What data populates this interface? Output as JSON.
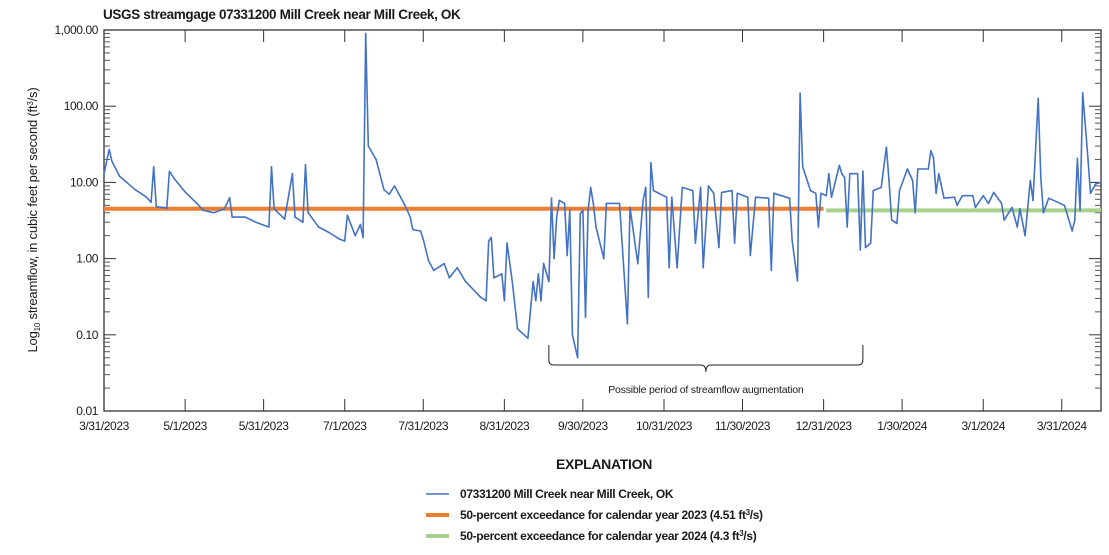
{
  "chart_data": {
    "type": "line",
    "title": "USGS streamgage 07331200 Mill Creek near Mill Creek, OK",
    "ylabel_parts": [
      "Log",
      "10",
      " streamflow, in cubic feet per second (ft",
      "3",
      "/s)"
    ],
    "xlabel": "",
    "y_scale": "log",
    "ylim": [
      0.01,
      1000
    ],
    "xlim": [
      "3/31/2023",
      "4/15/2024"
    ],
    "grid": false,
    "y_ticks": [
      {
        "value": 1000,
        "label": "1,000.00"
      },
      {
        "value": 100,
        "label": "100.00"
      },
      {
        "value": 10,
        "label": "10.00"
      },
      {
        "value": 1,
        "label": "1.00"
      },
      {
        "value": 0.1,
        "label": "0.10"
      },
      {
        "value": 0.01,
        "label": "0.01"
      }
    ],
    "x_ticks": [
      "3/31/2023",
      "5/1/2023",
      "5/31/2023",
      "7/1/2023",
      "7/31/2023",
      "8/31/2023",
      "9/30/2023",
      "10/31/2023",
      "11/30/2023",
      "12/31/2023",
      "1/30/2024",
      "3/1/2024",
      "3/31/2024"
    ],
    "series": [
      {
        "name": "07331200 Mill Creek near Mill Creek, OK",
        "color": "#4472C4",
        "points": [
          [
            "3/31/2023",
            13
          ],
          [
            "4/2/2023",
            27
          ],
          [
            "4/3/2023",
            19
          ],
          [
            "4/6/2023",
            12
          ],
          [
            "4/12/2023",
            8
          ],
          [
            "4/16/2023",
            6.5
          ],
          [
            "4/18/2023",
            5.5
          ],
          [
            "4/19/2023",
            16
          ],
          [
            "4/20/2023",
            4.8
          ],
          [
            "4/24/2023",
            4.6
          ],
          [
            "4/25/2023",
            14
          ],
          [
            "4/27/2023",
            11
          ],
          [
            "5/1/2023",
            7.5
          ],
          [
            "5/5/2023",
            5.5
          ],
          [
            "5/8/2023",
            4.3
          ],
          [
            "5/12/2023",
            4
          ],
          [
            "5/16/2023",
            4.5
          ],
          [
            "5/18/2023",
            6.3
          ],
          [
            "5/19/2023",
            3.5
          ],
          [
            "5/24/2023",
            3.5
          ],
          [
            "5/28/2023",
            3.0
          ],
          [
            "6/2/2023",
            2.6
          ],
          [
            "6/3/2023",
            16
          ],
          [
            "6/4/2023",
            4.5
          ],
          [
            "6/8/2023",
            3.3
          ],
          [
            "6/11/2023",
            13
          ],
          [
            "6/12/2023",
            3.5
          ],
          [
            "6/15/2023",
            3
          ],
          [
            "6/16/2023",
            17
          ],
          [
            "6/17/2023",
            4
          ],
          [
            "6/21/2023",
            2.6
          ],
          [
            "6/25/2023",
            2.2
          ],
          [
            "6/29/2023",
            1.8
          ],
          [
            "7/1/2023",
            1.7
          ],
          [
            "7/2/2023",
            3.7
          ],
          [
            "7/5/2023",
            2
          ],
          [
            "7/7/2023",
            2.8
          ],
          [
            "7/8/2023",
            1.9
          ],
          [
            "7/9/2023",
            900
          ],
          [
            "7/10/2023",
            30
          ],
          [
            "7/13/2023",
            20
          ],
          [
            "7/16/2023",
            8
          ],
          [
            "7/18/2023",
            7
          ],
          [
            "7/20/2023",
            9
          ],
          [
            "7/24/2023",
            5
          ],
          [
            "7/26/2023",
            3.5
          ],
          [
            "7/27/2023",
            2.4
          ],
          [
            "7/30/2023",
            2.3
          ],
          [
            "7/31/2023",
            1.8
          ],
          [
            "8/2/2023",
            0.94
          ],
          [
            "8/4/2023",
            0.7
          ],
          [
            "8/8/2023",
            0.86
          ],
          [
            "8/10/2023",
            0.56
          ],
          [
            "8/13/2023",
            0.76
          ],
          [
            "8/16/2023",
            0.51
          ],
          [
            "8/22/2023",
            0.31
          ],
          [
            "8/24/2023",
            0.28
          ],
          [
            "8/25/2023",
            1.7
          ],
          [
            "8/26/2023",
            1.9
          ],
          [
            "8/27/2023",
            0.56
          ],
          [
            "8/30/2023",
            0.63
          ],
          [
            "8/31/2023",
            0.28
          ],
          [
            "9/1/2023",
            1.6
          ],
          [
            "9/3/2023",
            0.51
          ],
          [
            "9/5/2023",
            0.12
          ],
          [
            "9/9/2023",
            0.09
          ],
          [
            "9/11/2023",
            0.5
          ],
          [
            "9/12/2023",
            0.28
          ],
          [
            "9/13/2023",
            0.63
          ],
          [
            "9/14/2023",
            0.28
          ],
          [
            "9/15/2023",
            0.86
          ],
          [
            "9/17/2023",
            0.5
          ],
          [
            "9/18/2023",
            6.2
          ],
          [
            "9/19/2023",
            1.0
          ],
          [
            "9/20/2023",
            3.5
          ],
          [
            "9/21/2023",
            5.8
          ],
          [
            "9/23/2023",
            5.3
          ],
          [
            "9/24/2023",
            1.1
          ],
          [
            "9/25/2023",
            4.3
          ],
          [
            "9/26/2023",
            0.1
          ],
          [
            "9/28/2023",
            0.05
          ],
          [
            "9/29/2023",
            3.9
          ],
          [
            "9/30/2023",
            4.3
          ],
          [
            "10/1/2023",
            0.17
          ],
          [
            "10/2/2023",
            4.3
          ],
          [
            "10/3/2023",
            8.6
          ],
          [
            "10/4/2023",
            5.3
          ],
          [
            "10/5/2023",
            2.6
          ],
          [
            "10/8/2023",
            1.0
          ],
          [
            "10/9/2023",
            5.3
          ],
          [
            "10/14/2023",
            5.3
          ],
          [
            "10/17/2023",
            0.14
          ],
          [
            "10/18/2023",
            4.7
          ],
          [
            "10/21/2023",
            0.86
          ],
          [
            "10/23/2023",
            5.8
          ],
          [
            "10/24/2023",
            8.6
          ],
          [
            "10/25/2023",
            0.31
          ],
          [
            "10/26/2023",
            18
          ],
          [
            "10/27/2023",
            7.8
          ],
          [
            "11/1/2023",
            6.4
          ],
          [
            "11/2/2023",
            0.76
          ],
          [
            "11/3/2023",
            6.4
          ],
          [
            "11/5/2023",
            0.76
          ],
          [
            "11/7/2023",
            8.6
          ],
          [
            "11/11/2023",
            7.8
          ],
          [
            "11/12/2023",
            1.6
          ],
          [
            "11/14/2023",
            8.6
          ],
          [
            "11/15/2023",
            0.76
          ],
          [
            "11/17/2023",
            9
          ],
          [
            "11/19/2023",
            7.2
          ],
          [
            "11/21/2023",
            1.4
          ],
          [
            "11/22/2023",
            7.4
          ],
          [
            "11/26/2023",
            7.8
          ],
          [
            "11/27/2023",
            1.6
          ],
          [
            "11/28/2023",
            7.2
          ],
          [
            "12/2/2023",
            6.4
          ],
          [
            "12/3/2023",
            1.1
          ],
          [
            "12/5/2023",
            6.4
          ],
          [
            "12/10/2023",
            6.2
          ],
          [
            "12/11/2023",
            0.7
          ],
          [
            "12/12/2023",
            7.2
          ],
          [
            "12/18/2023",
            6.2
          ],
          [
            "12/19/2023",
            1.7
          ],
          [
            "12/21/2023",
            0.51
          ],
          [
            "12/22/2023",
            148
          ],
          [
            "12/23/2023",
            16
          ],
          [
            "12/26/2023",
            7.8
          ],
          [
            "12/28/2023",
            7.2
          ],
          [
            "12/29/2023",
            2.6
          ],
          [
            "12/30/2023",
            7.2
          ],
          [
            "1/1/2024",
            6.7
          ],
          [
            "1/2/2024",
            13
          ],
          [
            "1/3/2024",
            6.4
          ],
          [
            "1/6/2024",
            16.7
          ],
          [
            "1/7/2024",
            13
          ],
          [
            "1/8/2024",
            11.6
          ],
          [
            "1/9/2024",
            2.6
          ],
          [
            "1/10/2024",
            13
          ],
          [
            "1/13/2024",
            13
          ],
          [
            "1/14/2024",
            1.3
          ],
          [
            "1/15/2024",
            14
          ],
          [
            "1/16/2024",
            1.4
          ],
          [
            "1/18/2024",
            1.6
          ],
          [
            "1/19/2024",
            7.8
          ],
          [
            "1/22/2024",
            8.6
          ],
          [
            "1/24/2024",
            29
          ],
          [
            "1/25/2024",
            10.6
          ],
          [
            "1/26/2024",
            3.2
          ],
          [
            "1/28/2024",
            2.9
          ],
          [
            "1/29/2024",
            7.8
          ],
          [
            "2/1/2024",
            15
          ],
          [
            "2/3/2024",
            10.6
          ],
          [
            "2/4/2024",
            4
          ],
          [
            "2/5/2024",
            15
          ],
          [
            "2/9/2024",
            15
          ],
          [
            "2/10/2024",
            26
          ],
          [
            "2/11/2024",
            21
          ],
          [
            "2/12/2024",
            7.2
          ],
          [
            "2/13/2024",
            13
          ],
          [
            "2/15/2024",
            6.2
          ],
          [
            "2/19/2024",
            6.4
          ],
          [
            "2/20/2024",
            5
          ],
          [
            "2/22/2024",
            6.7
          ],
          [
            "2/26/2024",
            6.7
          ],
          [
            "2/27/2024",
            4.7
          ],
          [
            "3/1/2024",
            6.7
          ],
          [
            "3/3/2024",
            5.3
          ],
          [
            "3/5/2024",
            7.4
          ],
          [
            "3/8/2024",
            5.3
          ],
          [
            "3/9/2024",
            3.2
          ],
          [
            "3/12/2024",
            4.7
          ],
          [
            "3/14/2024",
            2.6
          ],
          [
            "3/15/2024",
            4.5
          ],
          [
            "3/17/2024",
            2
          ],
          [
            "3/19/2024",
            10.6
          ],
          [
            "3/20/2024",
            5.8
          ],
          [
            "3/22/2024",
            127
          ],
          [
            "3/23/2024",
            11.6
          ],
          [
            "3/24/2024",
            4
          ],
          [
            "3/26/2024",
            6.2
          ],
          [
            "4/1/2024",
            5
          ],
          [
            "4/2/2024",
            3.9
          ],
          [
            "4/4/2024",
            2.3
          ],
          [
            "4/5/2024",
            3.2
          ],
          [
            "4/6/2024",
            20.7
          ],
          [
            "4/7/2024",
            4.3
          ],
          [
            "4/8/2024",
            150
          ],
          [
            "4/10/2024",
            21
          ],
          [
            "4/11/2024",
            7.2
          ],
          [
            "4/13/2024",
            9.6
          ],
          [
            "4/15/2024",
            10
          ]
        ]
      }
    ],
    "reference_lines": [
      {
        "label_parts": [
          "50-percent exceedance for calendar year 2023 (4.51 ft",
          "3",
          "/s)"
        ],
        "value": 4.51,
        "from": "3/31/2023",
        "to": "12/31/2023",
        "color": "#ED7D31"
      },
      {
        "label_parts": [
          "50-percent exceedance for calendar year 2024 (4.3 ft",
          "3",
          "/s)"
        ],
        "value": 4.3,
        "from": "1/1/2024",
        "to": "4/15/2024",
        "color": "#A9D18E"
      }
    ],
    "annotations": [
      {
        "text": "Possible period of streamflow augmentation",
        "from": "9/17/2023",
        "to": "1/15/2024"
      }
    ],
    "legend": {
      "title": "EXPLANATION",
      "placement": "bottom-center"
    }
  }
}
